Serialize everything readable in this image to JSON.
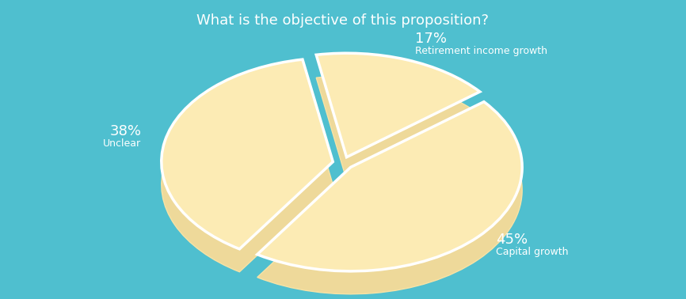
{
  "chart_data": {
    "type": "pie",
    "title": "What is the objective of this proposition?",
    "categories": [
      "Unclear",
      "Retirement income growth",
      "Capital growth"
    ],
    "values": [
      38,
      17,
      45
    ],
    "value_labels": [
      "38%",
      "17%",
      "45%"
    ],
    "color": "#fcebb4",
    "data_labels": true
  }
}
